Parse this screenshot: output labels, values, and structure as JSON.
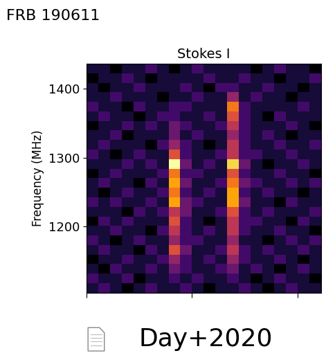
{
  "chart_data": {
    "type": "heatmap",
    "heading": "FRB 190611",
    "title": "Stokes I",
    "y_label": "Frequency (MHz)",
    "caption": "Day+2020",
    "xlim": [
      0,
      20
    ],
    "xticks": [
      0,
      9,
      18
    ],
    "ylim": [
      1104,
      1436
    ],
    "yticks": [
      1200,
      1300,
      1400
    ],
    "tick_labels": "y",
    "color_range": [
      0,
      10
    ],
    "cells": [
      [
        1,
        2,
        1,
        0,
        1,
        2,
        1,
        1,
        2,
        1,
        0,
        1,
        1,
        2,
        1,
        0,
        1,
        2,
        1,
        1
      ],
      [
        2,
        1,
        1,
        2,
        0,
        1,
        1,
        2,
        1,
        2,
        1,
        1,
        2,
        1,
        0,
        1,
        2,
        1,
        1,
        0
      ],
      [
        1,
        0,
        2,
        1,
        1,
        2,
        1,
        3,
        2,
        1,
        1,
        2,
        3,
        1,
        2,
        1,
        0,
        1,
        2,
        1
      ],
      [
        0,
        1,
        1,
        2,
        1,
        1,
        2,
        4,
        2,
        1,
        2,
        1,
        4,
        2,
        1,
        1,
        2,
        1,
        0,
        1
      ],
      [
        1,
        2,
        1,
        1,
        0,
        2,
        1,
        6,
        3,
        1,
        1,
        2,
        5,
        2,
        1,
        2,
        1,
        1,
        2,
        1
      ],
      [
        2,
        1,
        0,
        1,
        2,
        1,
        1,
        4,
        2,
        2,
        1,
        1,
        4,
        1,
        1,
        0,
        1,
        2,
        1,
        2
      ],
      [
        1,
        1,
        2,
        1,
        1,
        0,
        2,
        5,
        2,
        1,
        2,
        1,
        5,
        2,
        1,
        1,
        2,
        1,
        1,
        0
      ],
      [
        0,
        2,
        1,
        2,
        1,
        1,
        1,
        6,
        2,
        1,
        0,
        1,
        5,
        2,
        2,
        1,
        1,
        0,
        2,
        1
      ],
      [
        1,
        1,
        1,
        0,
        2,
        1,
        2,
        5,
        3,
        1,
        1,
        2,
        6,
        2,
        1,
        2,
        1,
        1,
        1,
        2
      ],
      [
        2,
        1,
        2,
        1,
        1,
        2,
        1,
        8,
        3,
        2,
        1,
        1,
        8,
        3,
        1,
        1,
        0,
        2,
        1,
        1
      ],
      [
        1,
        0,
        1,
        2,
        1,
        1,
        2,
        7,
        2,
        1,
        2,
        1,
        8,
        2,
        1,
        2,
        1,
        1,
        0,
        1
      ],
      [
        1,
        2,
        1,
        1,
        0,
        2,
        1,
        8,
        3,
        1,
        1,
        2,
        7,
        3,
        2,
        1,
        1,
        2,
        1,
        2
      ],
      [
        0,
        1,
        2,
        1,
        1,
        1,
        2,
        7,
        2,
        2,
        1,
        1,
        6,
        2,
        1,
        1,
        2,
        1,
        1,
        0
      ],
      [
        1,
        1,
        1,
        2,
        1,
        2,
        1,
        10,
        3,
        1,
        2,
        1,
        9,
        3,
        1,
        0,
        1,
        1,
        2,
        1
      ],
      [
        2,
        1,
        0,
        1,
        2,
        1,
        1,
        6,
        2,
        1,
        1,
        2,
        5,
        2,
        2,
        1,
        1,
        2,
        1,
        1
      ],
      [
        1,
        2,
        1,
        1,
        1,
        0,
        2,
        4,
        2,
        1,
        0,
        1,
        5,
        2,
        1,
        1,
        2,
        1,
        1,
        2
      ],
      [
        1,
        1,
        2,
        0,
        1,
        1,
        1,
        3,
        1,
        2,
        1,
        1,
        4,
        2,
        1,
        2,
        1,
        0,
        1,
        1
      ],
      [
        0,
        1,
        1,
        2,
        1,
        2,
        1,
        3,
        2,
        1,
        1,
        2,
        5,
        2,
        1,
        1,
        1,
        2,
        1,
        0
      ],
      [
        1,
        2,
        1,
        1,
        0,
        1,
        2,
        2,
        1,
        1,
        2,
        1,
        6,
        2,
        1,
        0,
        2,
        1,
        1,
        1
      ],
      [
        2,
        1,
        1,
        0,
        2,
        1,
        1,
        2,
        2,
        1,
        1,
        1,
        7,
        2,
        1,
        1,
        1,
        1,
        2,
        1
      ],
      [
        1,
        1,
        2,
        1,
        1,
        1,
        0,
        1,
        1,
        2,
        1,
        1,
        4,
        1,
        2,
        1,
        1,
        0,
        1,
        1
      ],
      [
        1,
        0,
        1,
        1,
        2,
        1,
        1,
        1,
        2,
        1,
        0,
        2,
        2,
        1,
        1,
        2,
        1,
        1,
        0,
        1
      ],
      [
        0,
        1,
        1,
        2,
        1,
        0,
        1,
        1,
        1,
        1,
        2,
        1,
        1,
        2,
        1,
        1,
        0,
        1,
        1,
        2
      ],
      [
        1,
        1,
        0,
        1,
        1,
        2,
        1,
        0,
        1,
        2,
        1,
        1,
        1,
        1,
        0,
        1,
        2,
        1,
        1,
        0
      ]
    ]
  }
}
